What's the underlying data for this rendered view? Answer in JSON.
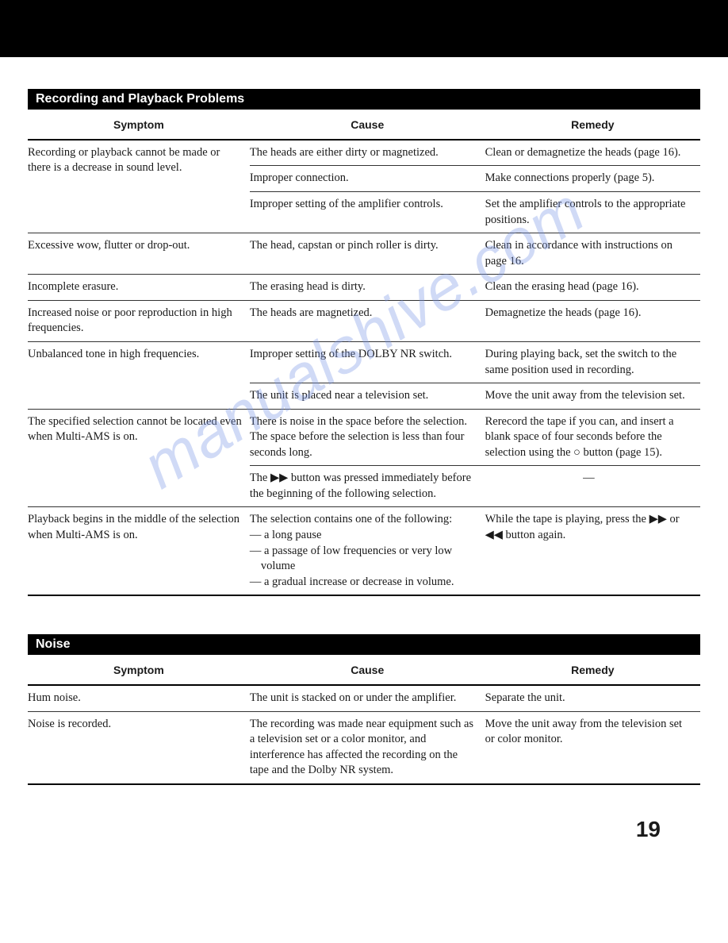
{
  "page_number": "19",
  "watermark_text": "manualshive.com",
  "sections": [
    {
      "title": "Recording and Playback Problems",
      "columns": [
        "Symptom",
        "Cause",
        "Remedy"
      ],
      "groups": [
        {
          "symptom": "Recording or playback cannot be made or there is a decrease in sound level.",
          "rows": [
            {
              "cause": "The heads are either dirty or magnetized.",
              "remedy": "Clean or demagnetize the heads (page 16)."
            },
            {
              "cause": "Improper connection.",
              "remedy": "Make connections properly (page 5)."
            },
            {
              "cause": "Improper setting of the amplifier controls.",
              "remedy": "Set the amplifier controls to the appropriate positions."
            }
          ]
        },
        {
          "symptom": "Excessive wow, flutter or drop-out.",
          "rows": [
            {
              "cause": "The head, capstan or pinch roller is dirty.",
              "remedy": "Clean in accordance with instructions on page 16."
            }
          ]
        },
        {
          "symptom": "Incomplete erasure.",
          "rows": [
            {
              "cause": "The erasing head is dirty.",
              "remedy": "Clean the erasing head (page 16)."
            }
          ]
        },
        {
          "symptom": "Increased noise or poor reproduction in high frequencies.",
          "rows": [
            {
              "cause": "The heads are magnetized.",
              "remedy": "Demagnetize the heads (page 16)."
            }
          ]
        },
        {
          "symptom": "Unbalanced tone in high frequencies.",
          "rows": [
            {
              "cause": "Improper setting of the DOLBY NR switch.",
              "remedy": "During playing back, set the switch to the same position used in recording."
            },
            {
              "cause": "The unit is placed near a television set.",
              "remedy": "Move the unit away from the television set."
            }
          ]
        },
        {
          "symptom": "The specified selection cannot be located even when Multi-AMS is on.",
          "rows": [
            {
              "cause": "There is noise in the space before the selection.\nThe space before the selection is less than four seconds long.",
              "remedy": "Rerecord the tape if you can, and insert a blank space of four seconds before the selection using the ○ button (page 15)."
            },
            {
              "cause": "The ▶▶ button was pressed immediately before the beginning of the following selection.",
              "remedy": "—"
            }
          ]
        },
        {
          "symptom": "Playback begins in the middle of the selection when Multi-AMS is on.",
          "rows": [
            {
              "cause_multi": {
                "lead": "The selection contains one of the following:",
                "items": [
                  "— a long pause",
                  "— a passage of low frequencies or very low volume",
                  "— a gradual increase or decrease in volume."
                ]
              },
              "remedy": "While the tape is playing, press the ▶▶ or ◀◀ button again."
            }
          ]
        }
      ]
    },
    {
      "title": "Noise",
      "columns": [
        "Symptom",
        "Cause",
        "Remedy"
      ],
      "groups": [
        {
          "symptom": "Hum noise.",
          "rows": [
            {
              "cause": "The unit is stacked on or under the amplifier.",
              "remedy": "Separate the unit."
            }
          ]
        },
        {
          "symptom": "Noise is recorded.",
          "rows": [
            {
              "cause": "The recording was made near equipment such as a television set or a color monitor, and interference has affected the recording on the tape and the Dolby NR system.",
              "remedy": "Move the unit away from the television set or color monitor."
            }
          ]
        }
      ]
    }
  ]
}
